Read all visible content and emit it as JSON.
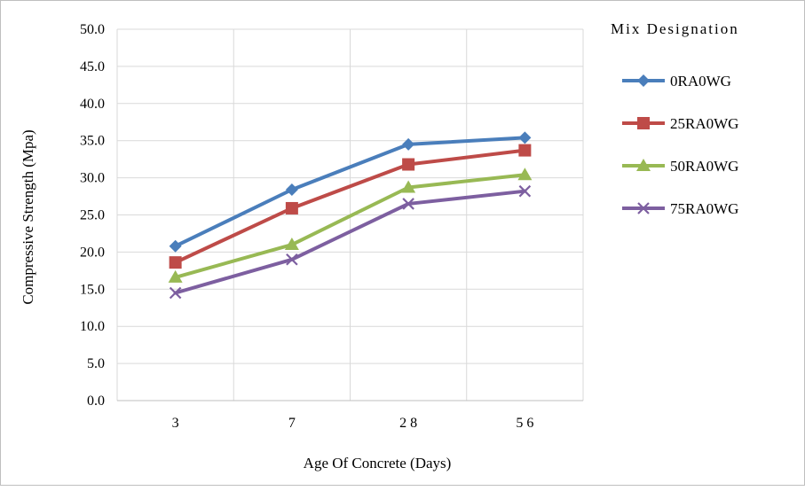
{
  "chart_data": {
    "type": "line",
    "title": "",
    "xlabel": "Age Of Concrete (Days)",
    "ylabel": "Compressive Strength (Mpa)",
    "categories": [
      "3",
      "7",
      "2 8",
      "5 6"
    ],
    "ylim": [
      0,
      50
    ],
    "yticks": [
      "0.0",
      "5.0",
      "10.0",
      "15.0",
      "20.0",
      "25.0",
      "30.0",
      "35.0",
      "40.0",
      "45.0",
      "50.0"
    ],
    "grid": true,
    "legend": {
      "title": "Mix Designation",
      "placement": "right"
    },
    "series": [
      {
        "name": "0RA0WG",
        "color": "#4a7ebb",
        "marker": "diamond",
        "values": [
          20.8,
          28.4,
          34.5,
          35.4
        ]
      },
      {
        "name": "25RA0WG",
        "color": "#be4b48",
        "marker": "square",
        "values": [
          18.6,
          25.9,
          31.8,
          33.7
        ]
      },
      {
        "name": "50RA0WG",
        "color": "#98b954",
        "marker": "triangle",
        "values": [
          16.6,
          21.0,
          28.7,
          30.4
        ]
      },
      {
        "name": "75RA0WG",
        "color": "#7d5fa0",
        "marker": "x",
        "values": [
          14.5,
          19.0,
          26.5,
          28.2
        ]
      }
    ]
  }
}
